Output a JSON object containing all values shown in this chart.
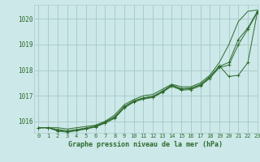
{
  "title": "Graphe pression niveau de la mer (hPa)",
  "background_color": "#cce8e8",
  "grid_color": "#aacccc",
  "line_color": "#2d6b2d",
  "xlim": [
    -0.5,
    23
  ],
  "ylim": [
    1015.55,
    1020.55
  ],
  "yticks": [
    1016,
    1017,
    1018,
    1019,
    1020
  ],
  "xticks": [
    0,
    1,
    2,
    3,
    4,
    5,
    6,
    7,
    8,
    9,
    10,
    11,
    12,
    13,
    14,
    15,
    16,
    17,
    18,
    19,
    20,
    21,
    22,
    23
  ],
  "series": [
    {
      "y": [
        1015.75,
        1015.75,
        1015.75,
        1015.7,
        1015.75,
        1015.8,
        1015.85,
        1016.0,
        1016.25,
        1016.65,
        1016.85,
        1017.0,
        1017.05,
        1017.25,
        1017.45,
        1017.35,
        1017.35,
        1017.5,
        1017.8,
        1018.3,
        1019.0,
        1019.9,
        1020.3,
        1020.35
      ],
      "marker": false
    },
    {
      "y": [
        1015.75,
        1015.75,
        1015.65,
        1015.6,
        1015.65,
        1015.72,
        1015.8,
        1015.95,
        1016.15,
        1016.55,
        1016.78,
        1016.9,
        1016.95,
        1017.15,
        1017.4,
        1017.25,
        1017.28,
        1017.42,
        1017.72,
        1018.15,
        1018.3,
        1019.2,
        1019.65,
        1020.3
      ],
      "marker": true
    },
    {
      "y": [
        1015.75,
        1015.75,
        1015.68,
        1015.63,
        1015.68,
        1015.74,
        1015.82,
        1015.98,
        1016.18,
        1016.58,
        1016.8,
        1016.92,
        1016.98,
        1017.18,
        1017.42,
        1017.28,
        1017.3,
        1017.44,
        1017.74,
        1018.17,
        1017.75,
        1017.8,
        1018.3,
        1020.28
      ],
      "marker": true
    },
    {
      "y": [
        1015.75,
        1015.75,
        1015.62,
        1015.58,
        1015.63,
        1015.7,
        1015.78,
        1015.93,
        1016.12,
        1016.52,
        1016.75,
        1016.87,
        1016.93,
        1017.13,
        1017.37,
        1017.22,
        1017.24,
        1017.38,
        1017.68,
        1018.1,
        1018.2,
        1019.0,
        1019.6,
        1020.25
      ],
      "marker": true
    }
  ]
}
